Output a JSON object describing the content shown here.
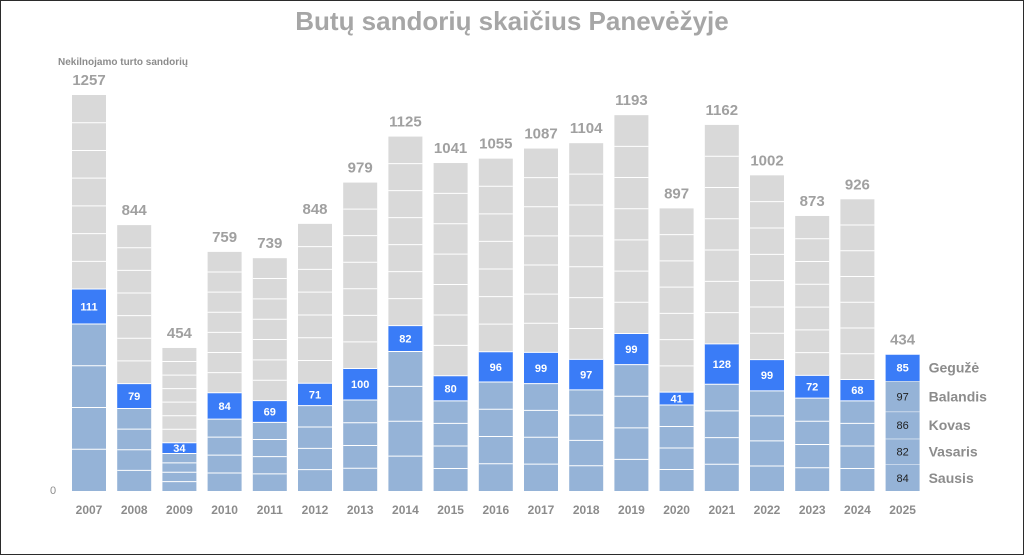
{
  "chart_data": {
    "type": "bar",
    "title": "Butų sandorių skaičius Panevėžyje",
    "ylabel": "Nekilnojamo turto sandorių",
    "y_zero_label": "0",
    "ylim": [
      0,
      1300
    ],
    "categories": [
      "2007",
      "2008",
      "2009",
      "2010",
      "2011",
      "2012",
      "2013",
      "2014",
      "2015",
      "2016",
      "2017",
      "2018",
      "2019",
      "2020",
      "2021",
      "2022",
      "2023",
      "2024",
      "2025"
    ],
    "totals": [
      1257,
      844,
      454,
      759,
      739,
      848,
      979,
      1125,
      1041,
      1055,
      1087,
      1104,
      1193,
      897,
      1162,
      1002,
      873,
      926,
      434
    ],
    "jan_apr": [
      530,
      262,
      119,
      228,
      218,
      271,
      289,
      443,
      286,
      346,
      341,
      321,
      401,
      273,
      339,
      318,
      295,
      286,
      349
    ],
    "may": [
      111,
      79,
      34,
      84,
      69,
      71,
      100,
      82,
      80,
      96,
      99,
      97,
      99,
      41,
      128,
      99,
      72,
      68,
      85
    ],
    "current_year_months": [
      {
        "name": "Sausis",
        "value": 84
      },
      {
        "name": "Vasaris",
        "value": 82
      },
      {
        "name": "Kovas",
        "value": 86
      },
      {
        "name": "Balandis",
        "value": 97
      },
      {
        "name": "Gegužė",
        "value": 85
      }
    ],
    "colors": {
      "rest": "#d9d9d9",
      "jan_apr": "#95b3d7",
      "may": "#3a7cf7",
      "divider": "#ffffff"
    }
  }
}
